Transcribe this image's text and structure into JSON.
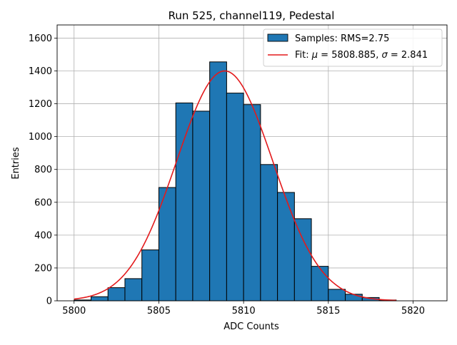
{
  "chart_data": {
    "type": "bar",
    "title": "Run 525, channel119, Pedestal",
    "xlabel": "ADC Counts",
    "ylabel": "Entries",
    "xlim": [
      5799,
      5822
    ],
    "ylim": [
      0,
      1680
    ],
    "grid": true,
    "legend_position": "top-right",
    "x_ticks": [
      5800,
      5805,
      5810,
      5815,
      5820
    ],
    "x_tick_labels": [
      "5800",
      "5805",
      "5810",
      "5815",
      "5820"
    ],
    "y_ticks": [
      0,
      200,
      400,
      600,
      800,
      1000,
      1200,
      1400,
      1600
    ],
    "y_tick_labels": [
      "0",
      "200",
      "400",
      "600",
      "800",
      "1000",
      "1200",
      "1400",
      "1600"
    ],
    "histogram": {
      "name": "Samples: RMS=2.75",
      "color": "#1f77b4",
      "edge_color": "#000000",
      "bin_edges": [
        5800,
        5801,
        5802,
        5803,
        5804,
        5805,
        5806,
        5807,
        5808,
        5809,
        5810,
        5811,
        5812,
        5813,
        5814,
        5815,
        5816,
        5817,
        5818,
        5819,
        5820
      ],
      "counts": [
        5,
        25,
        80,
        135,
        310,
        690,
        1205,
        1155,
        1455,
        1265,
        1195,
        830,
        660,
        500,
        210,
        70,
        40,
        20,
        5,
        0
      ]
    },
    "fit": {
      "name_prefix": "Fit: ",
      "mu_symbol": "μ",
      "mu_text": " = 5808.885, ",
      "sigma_symbol": "σ",
      "sigma_text": " = 2.841",
      "color": "#e31a1c",
      "mu": 5808.885,
      "sigma": 2.841,
      "amplitude": 1400,
      "x_range": [
        5800,
        5819
      ]
    }
  }
}
